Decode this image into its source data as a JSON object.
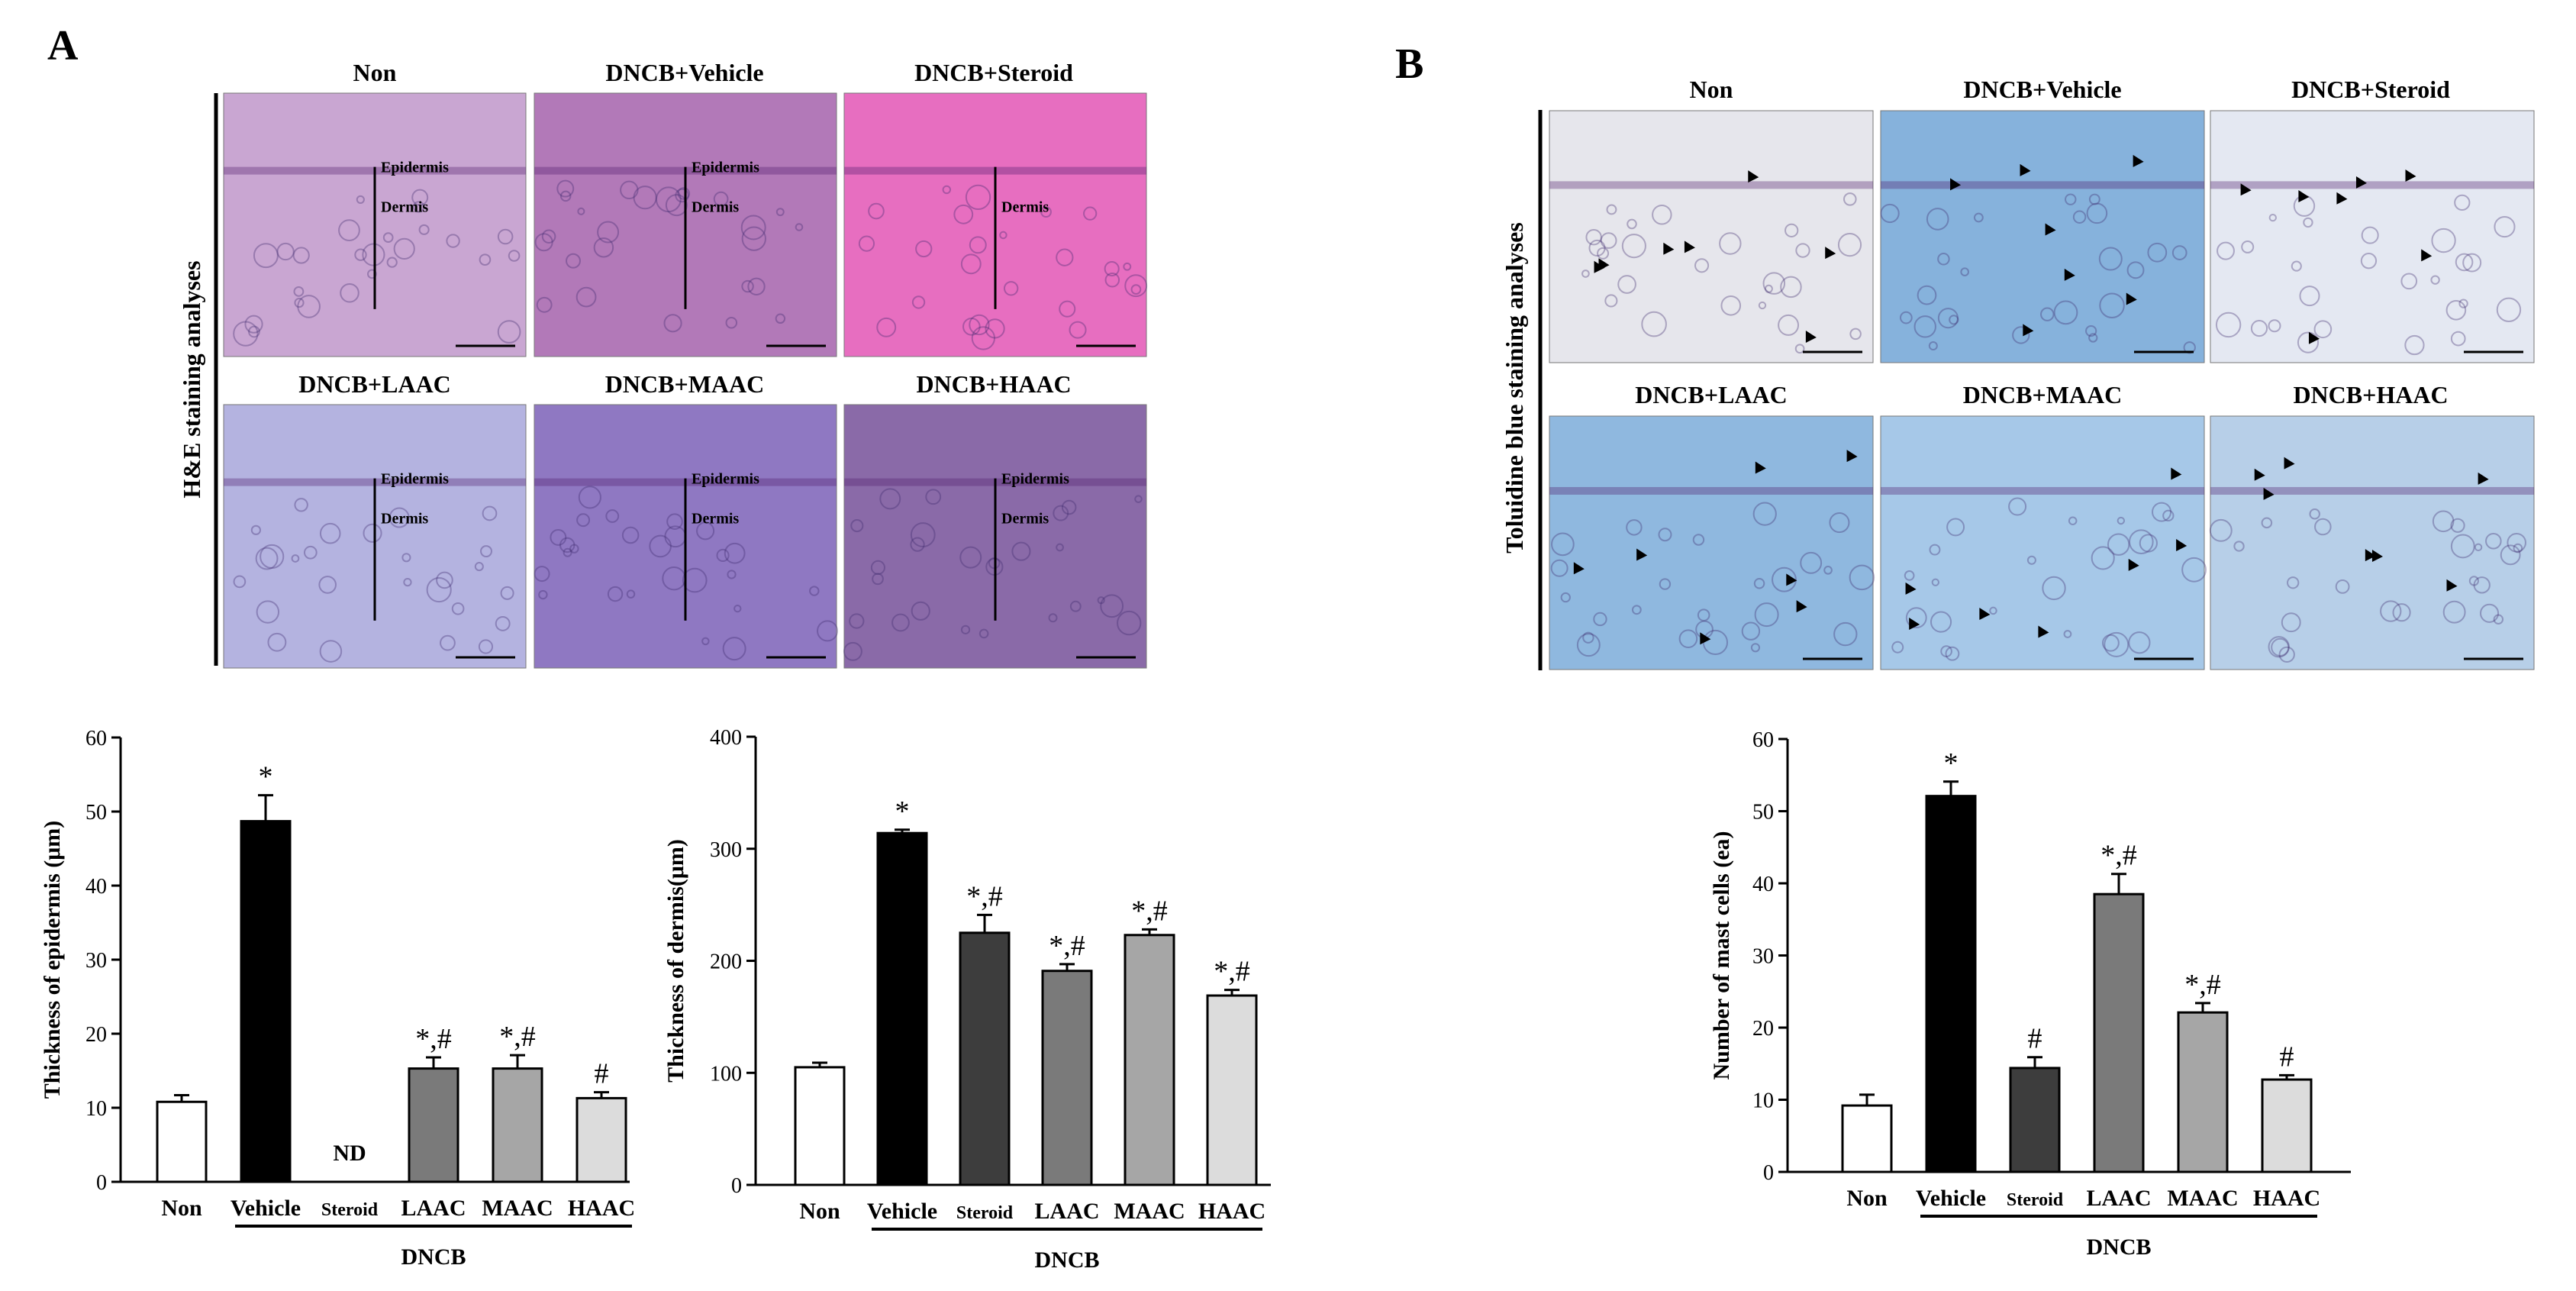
{
  "panels": {
    "a": {
      "letter": "A",
      "micro_side_label": "H&E staining analyses",
      "micro_groups": [
        "Non",
        "DNCB+Vehicle",
        "DNCB+Steroid",
        "DNCB+LAAC",
        "DNCB+MAAC",
        "DNCB+HAAC"
      ],
      "layer_labels": [
        "Epidermis",
        "Dermis"
      ],
      "micro_colors": [
        "#c9a6d2",
        "#b279b8",
        "#e76ec0",
        "#b4b3e0",
        "#8f78c2",
        "#8a6aa8"
      ]
    },
    "b": {
      "letter": "B",
      "micro_side_label": "Toluidine blue staining analyses",
      "micro_groups": [
        "Non",
        "DNCB+Vehicle",
        "DNCB+Steroid",
        "DNCB+LAAC",
        "DNCB+MAAC",
        "DNCB+HAAC"
      ],
      "micro_colors": [
        "#e6e6ec",
        "#86b2dc",
        "#e4e8f2",
        "#8fb8df",
        "#a6c8e8",
        "#b7cfe8"
      ]
    }
  },
  "chart_data": [
    {
      "type": "bar",
      "id": "epidermis",
      "categories": [
        "Non",
        "Vehicle",
        "Steroid",
        "LAAC",
        "MAAC",
        "HAAC"
      ],
      "values": [
        10.8,
        48.7,
        null,
        15.3,
        15.3,
        11.3
      ],
      "errors": [
        0.9,
        3.5,
        null,
        1.5,
        1.8,
        0.8
      ],
      "annotations": [
        "",
        "*",
        "ND",
        "*,#",
        "*,#",
        "#"
      ],
      "ylabel": "Thickness of epidermis (μm)",
      "ylim": [
        0,
        60
      ],
      "yticks": [
        0,
        10,
        20,
        30,
        40,
        50,
        60
      ],
      "group_label": "DNCB",
      "bar_colors": [
        "#ffffff",
        "#000000",
        "#3d3d3d",
        "#7a7a7a",
        "#a6a6a6",
        "#dcdcdc"
      ]
    },
    {
      "type": "bar",
      "id": "dermis",
      "categories": [
        "Non",
        "Vehicle",
        "Steroid",
        "LAAC",
        "MAAC",
        "HAAC"
      ],
      "values": [
        105,
        314,
        225,
        191,
        223,
        169
      ],
      "errors": [
        4,
        3,
        16,
        6,
        5,
        5
      ],
      "annotations": [
        "",
        "*",
        "*,#",
        "*,#",
        "*,#",
        "*,#"
      ],
      "ylabel": "Thickness of dermis(μm)",
      "ylim": [
        0,
        400
      ],
      "yticks": [
        0,
        100,
        200,
        300,
        400
      ],
      "group_label": "DNCB",
      "bar_colors": [
        "#ffffff",
        "#000000",
        "#3d3d3d",
        "#7a7a7a",
        "#a6a6a6",
        "#dcdcdc"
      ]
    },
    {
      "type": "bar",
      "id": "mast",
      "categories": [
        "Non",
        "Vehicle",
        "Steroid",
        "LAAC",
        "MAAC",
        "HAAC"
      ],
      "values": [
        9.2,
        52.1,
        14.4,
        38.5,
        22.1,
        12.8
      ],
      "errors": [
        1.5,
        2.0,
        1.5,
        2.8,
        1.3,
        0.6
      ],
      "annotations": [
        "",
        "*",
        "#",
        "*,#",
        "*,#",
        "#"
      ],
      "ylabel": "Number of mast cells (ea)",
      "ylim": [
        0,
        60
      ],
      "yticks": [
        0,
        10,
        20,
        30,
        40,
        50,
        60
      ],
      "group_label": "DNCB",
      "bar_colors": [
        "#ffffff",
        "#000000",
        "#3d3d3d",
        "#7a7a7a",
        "#a6a6a6",
        "#dcdcdc"
      ]
    }
  ]
}
